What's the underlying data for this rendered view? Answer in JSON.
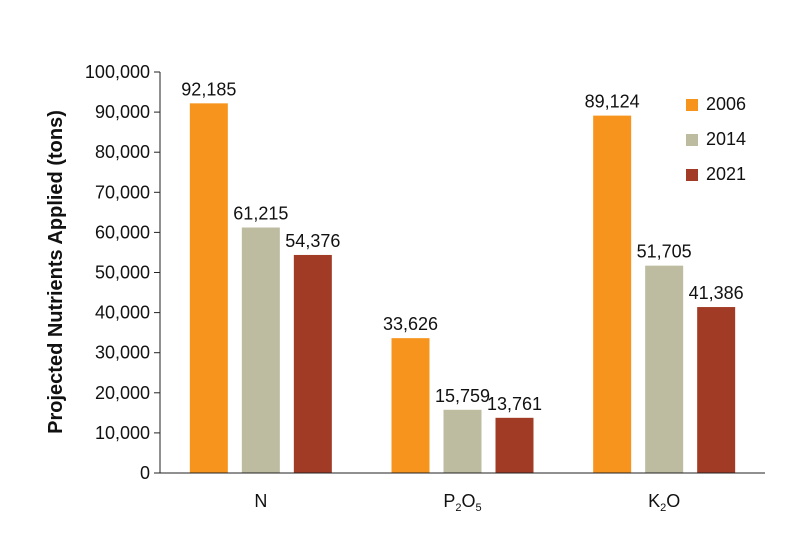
{
  "chart_data": {
    "type": "bar",
    "title": "",
    "xlabel": "",
    "ylabel": "Projected Nutrients Applied (tons)",
    "ylim": [
      0,
      100000
    ],
    "yticks": [
      "0",
      "10,000",
      "20,000",
      "30,000",
      "40,000",
      "50,000",
      "60,000",
      "70,000",
      "80,000",
      "90,000",
      "100,000"
    ],
    "categories": [
      {
        "base": "N",
        "sub1": "",
        "mid": "",
        "sub2": ""
      },
      {
        "base": "P",
        "sub1": "2",
        "mid": "O",
        "sub2": "5"
      },
      {
        "base": "K",
        "sub1": "2",
        "mid": "O",
        "sub2": ""
      }
    ],
    "series": [
      {
        "name": "2006",
        "color": "#F7941D",
        "values": [
          92185,
          33626,
          89124
        ],
        "labels": [
          "92,185",
          "33,626",
          "89,124"
        ]
      },
      {
        "name": "2014",
        "color": "#BDBBA0",
        "values": [
          61215,
          15759,
          51705
        ],
        "labels": [
          "61,215",
          "15,759",
          "51,705"
        ]
      },
      {
        "name": "2021",
        "color": "#A23B26",
        "values": [
          54376,
          13761,
          41386
        ],
        "labels": [
          "54,376",
          "13,761",
          "41,386"
        ]
      }
    ],
    "legend": {
      "position": "top-right"
    },
    "grid": false
  }
}
